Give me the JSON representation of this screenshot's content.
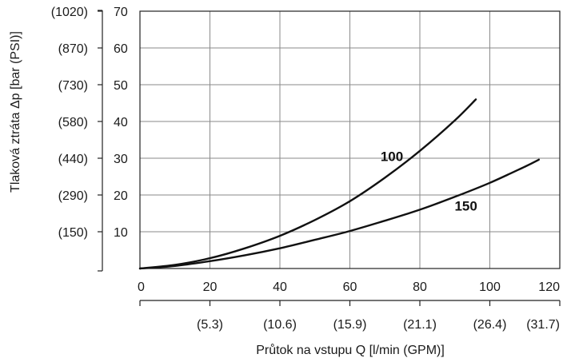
{
  "chart_data": {
    "type": "line",
    "title": "",
    "xlabel": "Průtok na vstupu Q  [l/min (GPM)]",
    "ylabel": "Tlaková ztráta Δp [bar (PSI)]",
    "xlim": [
      0,
      120
    ],
    "ylim": [
      0,
      70
    ],
    "x_ticks": [
      {
        "value": 0,
        "label": "0"
      },
      {
        "value": 20,
        "label": "20"
      },
      {
        "value": 40,
        "label": "40"
      },
      {
        "value": 60,
        "label": "60"
      },
      {
        "value": 80,
        "label": "80"
      },
      {
        "value": 100,
        "label": "100"
      },
      {
        "value": 120,
        "label": "120"
      }
    ],
    "x_ticks_secondary": [
      {
        "value": 20,
        "label": "(5.3)"
      },
      {
        "value": 40,
        "label": "(10.6)"
      },
      {
        "value": 60,
        "label": "(15.9)"
      },
      {
        "value": 80,
        "label": "(21.1)"
      },
      {
        "value": 100,
        "label": "(26.4)"
      },
      {
        "value": 120,
        "label": "(31.7)"
      }
    ],
    "y_ticks": [
      {
        "value": 10,
        "label": "10"
      },
      {
        "value": 20,
        "label": "20"
      },
      {
        "value": 30,
        "label": "30"
      },
      {
        "value": 40,
        "label": "40"
      },
      {
        "value": 50,
        "label": "50"
      },
      {
        "value": 60,
        "label": "60"
      },
      {
        "value": 70,
        "label": "70"
      }
    ],
    "y_ticks_secondary": [
      {
        "value": 10,
        "label": "(150)"
      },
      {
        "value": 20,
        "label": "(290)"
      },
      {
        "value": 30,
        "label": "(440)"
      },
      {
        "value": 40,
        "label": "(580)"
      },
      {
        "value": 50,
        "label": "(730)"
      },
      {
        "value": 60,
        "label": "(870)"
      },
      {
        "value": 70,
        "label": "(1020)"
      }
    ],
    "grid": true,
    "series": [
      {
        "name": "100",
        "color": "#111111",
        "x": [
          0,
          10,
          20,
          30,
          40,
          50,
          60,
          70,
          80,
          90,
          96
        ],
        "y": [
          0,
          1.0,
          2.8,
          5.5,
          8.9,
          13.2,
          18.3,
          24.7,
          32.0,
          40.3,
          46.0
        ]
      },
      {
        "name": "150",
        "color": "#111111",
        "x": [
          0,
          10,
          20,
          30,
          40,
          50,
          60,
          70,
          80,
          90,
          100,
          110,
          114
        ],
        "y": [
          0,
          0.7,
          2.0,
          3.6,
          5.5,
          7.8,
          10.2,
          13.0,
          16.0,
          19.5,
          23.3,
          27.7,
          29.6
        ]
      }
    ]
  }
}
